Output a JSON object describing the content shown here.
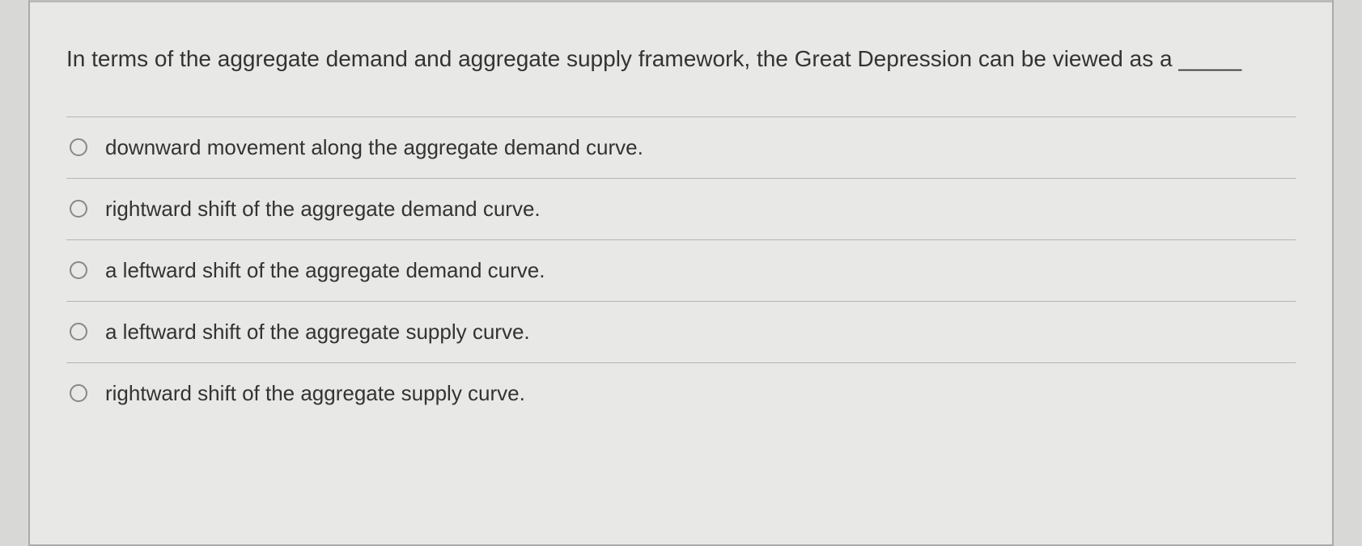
{
  "question": {
    "text": "In terms of the aggregate demand and aggregate supply framework, the Great Depression can be viewed as a _____"
  },
  "options": [
    {
      "label": "downward movement along the aggregate demand curve."
    },
    {
      "label": "rightward shift of the aggregate demand curve."
    },
    {
      "label": "a leftward shift of the aggregate demand curve."
    },
    {
      "label": "a leftward shift of the aggregate supply curve."
    },
    {
      "label": "rightward shift of the aggregate supply curve."
    }
  ],
  "styling": {
    "background_color": "#e8e8e6",
    "border_color": "#b5b5b3",
    "text_color": "#333333",
    "radio_border_color": "#888888",
    "question_fontsize": 28,
    "option_fontsize": 26
  }
}
